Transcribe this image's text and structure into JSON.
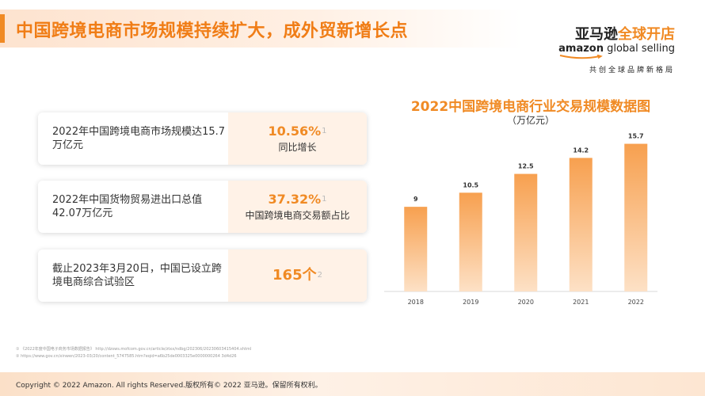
{
  "header": {
    "title": "中国跨境电商市场规模持续扩大，成外贸新增长点"
  },
  "logo": {
    "line1_dark": "亚马逊",
    "line1_accent": "全球开店",
    "line2_dark": "amazon",
    "line2_regular": " global selling",
    "tagline": "共创全球品牌新格局"
  },
  "stats": [
    {
      "description": "2022年中国跨境电商市场规模达15.7万亿元",
      "value": "10.56%",
      "footnote": "1",
      "sublabel": "同比增长"
    },
    {
      "description": "2022年中国货物贸易进出口总值42.07万亿元",
      "value": "37.32%",
      "footnote": "1",
      "sublabel": "中国跨境电商交易额占比"
    },
    {
      "description": "截止2023年3月20日，中国已设立跨境电商综合试验区",
      "value": "165个",
      "footnote": "2",
      "sublabel": ""
    }
  ],
  "chart_data": {
    "type": "bar",
    "title": "2022中国跨境电商行业交易规模数据图",
    "unit": "（万亿元）",
    "categories": [
      "2018",
      "2019",
      "2020",
      "2021",
      "2022"
    ],
    "values": [
      9,
      10.5,
      12.5,
      14.2,
      15.7
    ],
    "ylim": [
      0,
      16
    ],
    "grid": false,
    "colors": {
      "bar_top": "#f7a04f",
      "bar_bottom": "#fde1c6",
      "axis": "#d9d9d9"
    }
  },
  "footnotes": [
    "① 《2022年度中国电子商务市场数据报告》 http://dzsws.mofcom.gov.cn/article/ztxx/ndbg/202306/20230603415404.shtml",
    "② https://www.gov.cn/xinwen/2023-03/20/content_5747585.htm?eqid=a6b25de0003325e0000000264 3d4d26"
  ],
  "footer": {
    "copyright": "Copyright © 2022 Amazon. All rights Reserved.版权所有© 2022 亚马逊。保留所有权利。"
  },
  "theme": {
    "accent": "#f08a24",
    "card_highlight": "#fff2e7"
  }
}
